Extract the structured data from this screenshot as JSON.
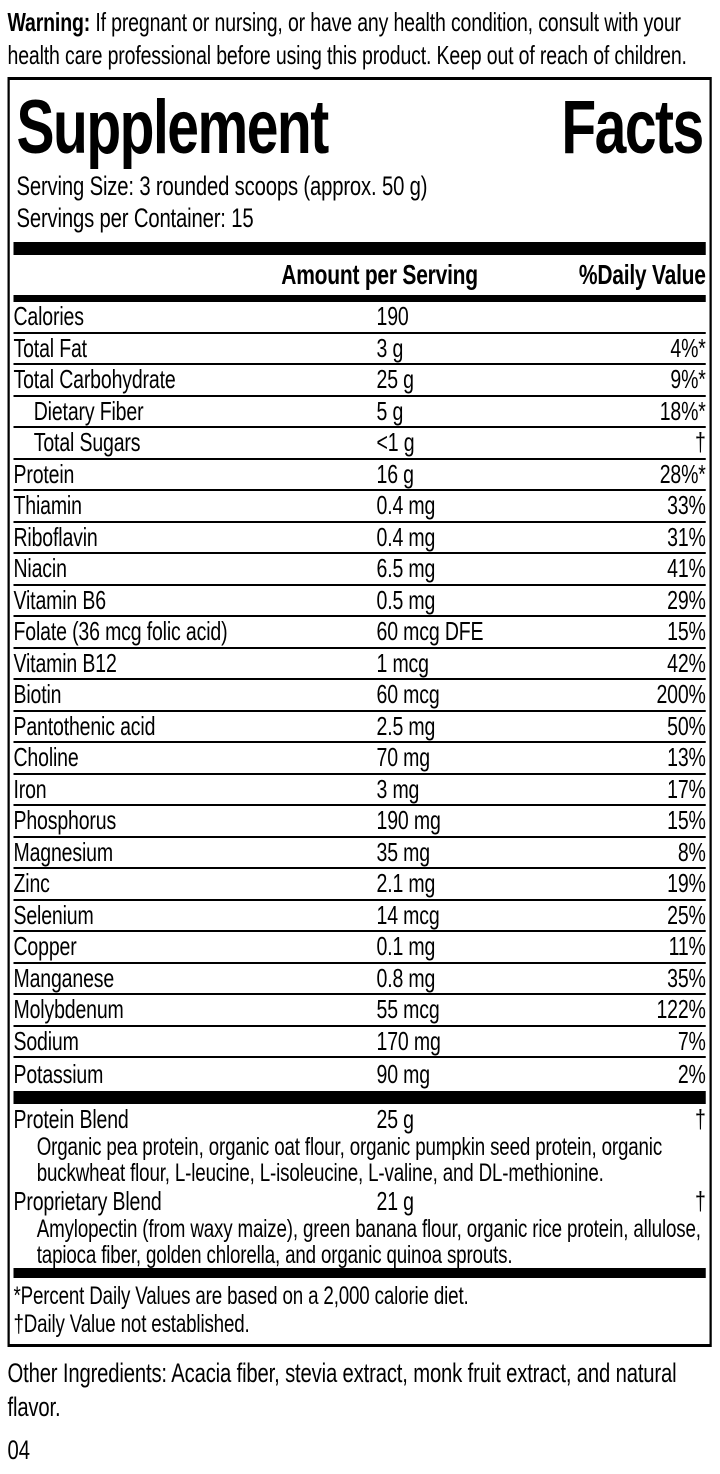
{
  "warning": {
    "label": "Warning:",
    "text": "If pregnant or nursing, or have any health condition, consult with your health care professional before using this product. Keep out of reach of children."
  },
  "panel": {
    "title": {
      "word1": "Supplement",
      "word2": "Facts"
    },
    "serving_size": "Serving Size: 3 rounded scoops (approx. 50 g)",
    "servings_per_container": "Servings per Container: 15",
    "columns": {
      "amount": "Amount per Serving",
      "daily_value": "%Daily Value"
    },
    "rows": [
      {
        "name": "Calories",
        "amount": "190",
        "dv": "",
        "indent": false
      },
      {
        "name": "Total Fat",
        "amount": "3 g",
        "dv": "4%*",
        "indent": false
      },
      {
        "name": "Total Carbohydrate",
        "amount": "25 g",
        "dv": "9%*",
        "indent": false
      },
      {
        "name": "Dietary Fiber",
        "amount": "5 g",
        "dv": "18%*",
        "indent": true
      },
      {
        "name": "Total Sugars",
        "amount": "<1 g",
        "dv": "†",
        "indent": true
      },
      {
        "name": "Protein",
        "amount": "16 g",
        "dv": "28%*",
        "indent": false
      },
      {
        "name": "Thiamin",
        "amount": "0.4 mg",
        "dv": "33%",
        "indent": false
      },
      {
        "name": "Riboflavin",
        "amount": "0.4 mg",
        "dv": "31%",
        "indent": false
      },
      {
        "name": "Niacin",
        "amount": "6.5 mg",
        "dv": "41%",
        "indent": false
      },
      {
        "name": "Vitamin B6",
        "amount": "0.5 mg",
        "dv": "29%",
        "indent": false
      },
      {
        "name": "Folate (36 mcg folic acid)",
        "amount": "60 mcg DFE",
        "dv": "15%",
        "indent": false
      },
      {
        "name": "Vitamin B12",
        "amount": "1 mcg",
        "dv": "42%",
        "indent": false
      },
      {
        "name": "Biotin",
        "amount": "60 mcg",
        "dv": "200%",
        "indent": false
      },
      {
        "name": "Pantothenic acid",
        "amount": "2.5 mg",
        "dv": "50%",
        "indent": false
      },
      {
        "name": "Choline",
        "amount": "70 mg",
        "dv": "13%",
        "indent": false
      },
      {
        "name": "Iron",
        "amount": "3 mg",
        "dv": "17%",
        "indent": false
      },
      {
        "name": "Phosphorus",
        "amount": "190 mg",
        "dv": "15%",
        "indent": false
      },
      {
        "name": "Magnesium",
        "amount": "35 mg",
        "dv": "8%",
        "indent": false
      },
      {
        "name": "Zinc",
        "amount": "2.1 mg",
        "dv": "19%",
        "indent": false
      },
      {
        "name": "Selenium",
        "amount": "14 mcg",
        "dv": "25%",
        "indent": false
      },
      {
        "name": "Copper",
        "amount": "0.1 mg",
        "dv": "11%",
        "indent": false
      },
      {
        "name": "Manganese",
        "amount": "0.8 mg",
        "dv": "35%",
        "indent": false
      },
      {
        "name": "Molybdenum",
        "amount": "55 mcg",
        "dv": "122%",
        "indent": false
      },
      {
        "name": "Sodium",
        "amount": "170 mg",
        "dv": "7%",
        "indent": false
      },
      {
        "name": "Potassium",
        "amount": "90 mg",
        "dv": "2%",
        "indent": false
      }
    ],
    "blends": [
      {
        "name": "Protein Blend",
        "amount": "25 g",
        "dv": "†",
        "desc": "Organic pea protein, organic oat flour, organic pumpkin seed protein, organic buckwheat flour, L-leucine, L-isoleucine, L-valine, and DL-methionine."
      },
      {
        "name": "Proprietary Blend",
        "amount": "21 g",
        "dv": "†",
        "desc": "Amylopectin (from waxy maize), green banana flour, organic rice protein, allulose, tapioca fiber, golden chlorella, and organic quinoa sprouts."
      }
    ],
    "footnotes": [
      "*Percent Daily Values are based on a 2,000 calorie diet.",
      "†Daily Value not established."
    ]
  },
  "other_ingredients": "Other Ingredients: Acacia fiber, stevia extract, monk fruit extract, and natural flavor.",
  "page_number": "04",
  "colors": {
    "ink": "#000000",
    "background": "#ffffff"
  }
}
